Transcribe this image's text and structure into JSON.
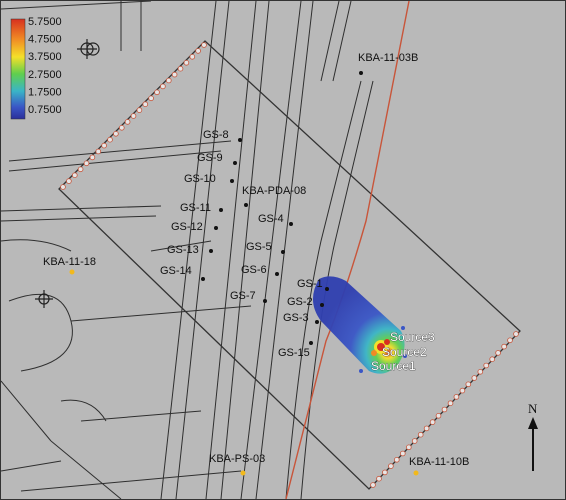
{
  "legend": {
    "values": [
      "5.7500",
      "4.7500",
      "3.7500",
      "2.7500",
      "1.7500",
      "0.7500"
    ],
    "colors": [
      "#d7301f",
      "#f08a25",
      "#f4e02a",
      "#5fcf4e",
      "#3ab5c7",
      "#3a56c6",
      "#2b2f9a"
    ]
  },
  "north_label": "N",
  "monitoring_points": [
    {
      "id": "GS-8",
      "label": "GS-8"
    },
    {
      "id": "GS-9",
      "label": "GS-9"
    },
    {
      "id": "GS-10",
      "label": "GS-10"
    },
    {
      "id": "GS-11",
      "label": "GS-11"
    },
    {
      "id": "GS-12",
      "label": "GS-12"
    },
    {
      "id": "GS-13",
      "label": "GS-13"
    },
    {
      "id": "GS-14",
      "label": "GS-14"
    },
    {
      "id": "KBA-PDA-08",
      "label": "KBA-PDA-08"
    },
    {
      "id": "GS-4",
      "label": "GS-4"
    },
    {
      "id": "GS-5",
      "label": "GS-5"
    },
    {
      "id": "GS-6",
      "label": "GS-6"
    },
    {
      "id": "GS-7",
      "label": "GS-7"
    },
    {
      "id": "GS-1",
      "label": "GS-1"
    },
    {
      "id": "GS-2",
      "label": "GS-2"
    },
    {
      "id": "GS-3",
      "label": "GS-3"
    },
    {
      "id": "GS-15",
      "label": "GS-15"
    },
    {
      "id": "KBA-11-03B",
      "label": "KBA-11-03B"
    }
  ],
  "wells": [
    {
      "id": "KBA-11-18",
      "label": "KBA-11-18"
    },
    {
      "id": "KBA-PS-03",
      "label": "KBA-PS-03"
    },
    {
      "id": "KBA-11-10B",
      "label": "KBA-11-10B"
    }
  ],
  "sources": [
    {
      "id": "source3",
      "label": "Source3"
    },
    {
      "id": "source2",
      "label": "Source2"
    },
    {
      "id": "source1",
      "label": "Source1"
    }
  ],
  "colors": {
    "background": "#b9b9b9",
    "linework": "#2f2f2f",
    "pipeline": "#c8553a",
    "monitoring_dot": "#111111",
    "well_dot": "#f2b91c"
  }
}
